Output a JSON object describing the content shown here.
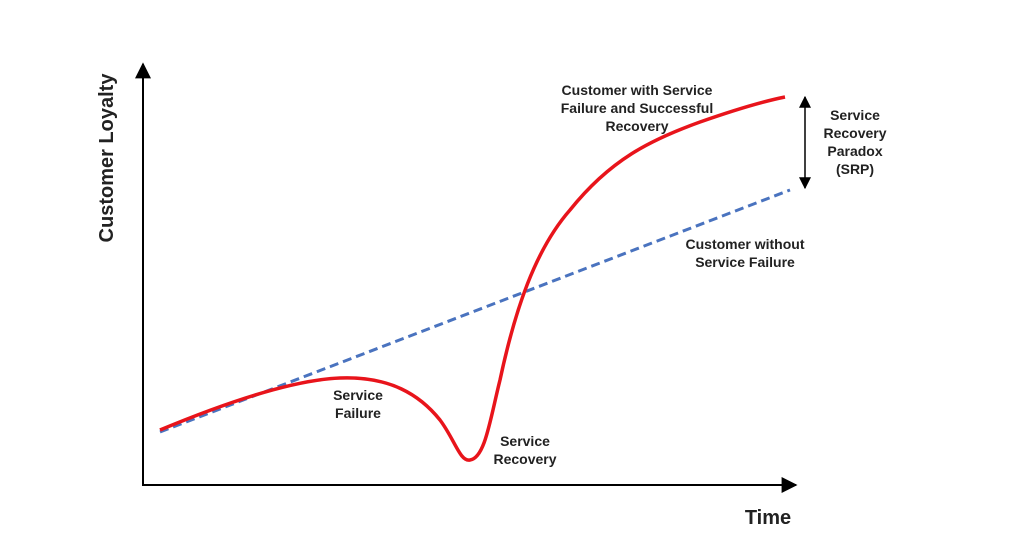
{
  "y_axis": {
    "label": "Customer Loyalty"
  },
  "x_axis": {
    "label": "Time"
  },
  "labels": {
    "with_recovery": {
      "lines": [
        "Customer with Service",
        "Failure and Successful",
        "Recovery"
      ]
    },
    "without_failure": {
      "lines": [
        "Customer without",
        "Service Failure"
      ]
    },
    "service_failure": {
      "lines": [
        "Service",
        "Failure"
      ]
    },
    "service_recovery": {
      "lines": [
        "Service",
        "Recovery"
      ]
    },
    "paradox": {
      "lines": [
        "Service",
        "Recovery",
        "Paradox",
        "(SRP)"
      ]
    }
  }
}
